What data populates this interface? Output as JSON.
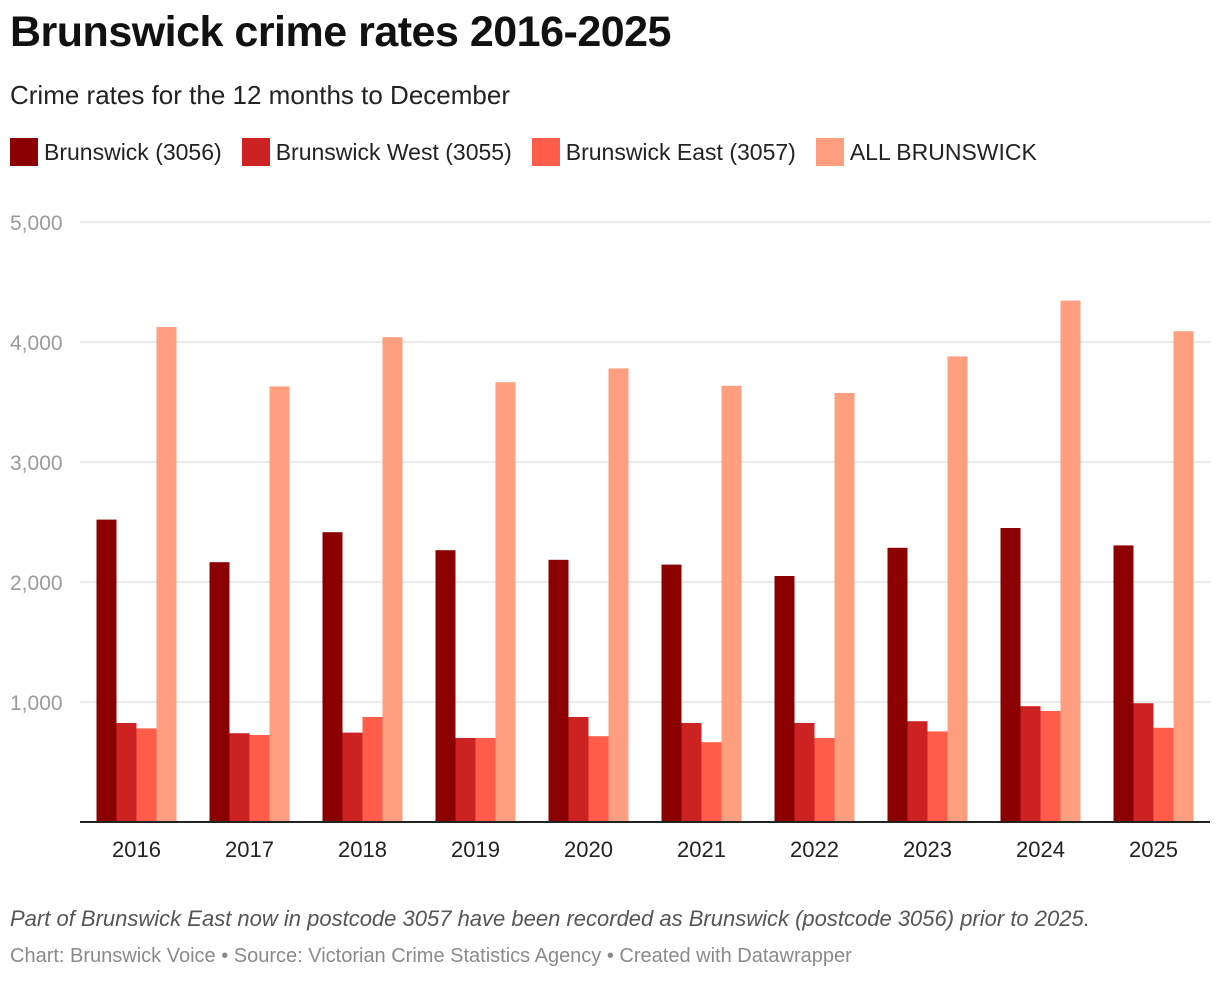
{
  "title": "Brunswick crime rates 2016-2025",
  "subtitle": "Crime rates for the 12 months to December",
  "note": "Part of Brunswick East now in postcode 3057 have been recorded as Brunswick (postcode 3056) prior to 2025.",
  "credits": "Chart: Brunswick Voice • Source: Victorian Crime Statistics Agency • Created with Datawrapper",
  "legend": [
    {
      "label": "Brunswick (3056)",
      "color": "#8b0000"
    },
    {
      "label": "Brunswick West (3055)",
      "color": "#cd2222"
    },
    {
      "label": "Brunswick East (3057)",
      "color": "#ff5c4a"
    },
    {
      "label": "ALL BRUNSWICK",
      "color": "#ff9f80"
    }
  ],
  "chart_data": {
    "type": "bar",
    "categories": [
      "2016",
      "2017",
      "2018",
      "2019",
      "2020",
      "2021",
      "2022",
      "2023",
      "2024",
      "2025"
    ],
    "series": [
      {
        "name": "Brunswick (3056)",
        "color": "#8b0000",
        "values": [
          2520,
          2165,
          2415,
          2265,
          2185,
          2145,
          2050,
          2285,
          2450,
          2305
        ]
      },
      {
        "name": "Brunswick West (3055)",
        "color": "#cd2222",
        "values": [
          825,
          740,
          745,
          700,
          875,
          825,
          825,
          840,
          965,
          990
        ]
      },
      {
        "name": "Brunswick East (3057)",
        "color": "#ff5c4a",
        "values": [
          780,
          725,
          875,
          700,
          715,
          665,
          700,
          755,
          925,
          785
        ]
      },
      {
        "name": "ALL BRUNSWICK",
        "color": "#ff9f80",
        "values": [
          4125,
          3630,
          4040,
          3665,
          3780,
          3635,
          3575,
          3880,
          4345,
          4090
        ]
      }
    ],
    "yticks": [
      1000,
      2000,
      3000,
      4000,
      5000
    ],
    "ytick_labels": [
      "1,000",
      "2,000",
      "3,000",
      "4,000",
      "5,000"
    ],
    "ylim": [
      0,
      5000
    ],
    "grid": true,
    "legend_position": "top-left"
  }
}
